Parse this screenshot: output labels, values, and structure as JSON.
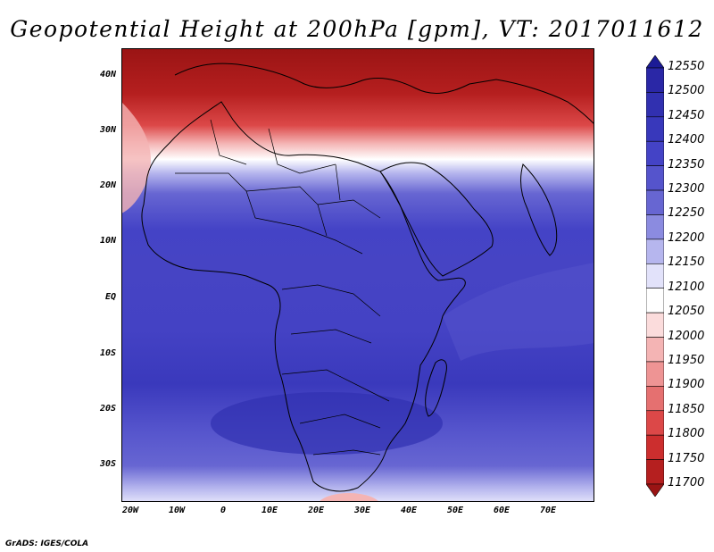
{
  "title": "Geopotential Height at 200hPa [gpm], VT: 2017011612",
  "credit": "GrADS: IGES/COLA",
  "map": {
    "lat_labels": [
      "40N",
      "30N",
      "20N",
      "10N",
      "EQ",
      "10S",
      "20S",
      "30S"
    ],
    "lon_labels": [
      "20W",
      "10W",
      "0",
      "10E",
      "20E",
      "30E",
      "40E",
      "50E",
      "60E",
      "70E"
    ],
    "lat_range": [
      -36.5,
      44
    ],
    "lon_range": [
      -22,
      80
    ]
  },
  "colorbar": {
    "levels": [
      "12550",
      "12500",
      "12450",
      "12400",
      "12350",
      "12300",
      "12250",
      "12200",
      "12150",
      "12100",
      "12050",
      "12000",
      "11950",
      "11900",
      "11850",
      "11800",
      "11750",
      "11700"
    ],
    "colors_top_to_bottom": [
      "#1c1b96",
      "#2a27a6",
      "#3130b0",
      "#3838bb",
      "#4443c6",
      "#5554cc",
      "#6766d2",
      "#8b8be0",
      "#b6b6ee",
      "#e2e2fa",
      "#ffffff",
      "#fbdcdc",
      "#f4b4b4",
      "#ee9494",
      "#e57070",
      "#dc4848",
      "#cc2e2e",
      "#b51f1f",
      "#9a1414"
    ]
  }
}
